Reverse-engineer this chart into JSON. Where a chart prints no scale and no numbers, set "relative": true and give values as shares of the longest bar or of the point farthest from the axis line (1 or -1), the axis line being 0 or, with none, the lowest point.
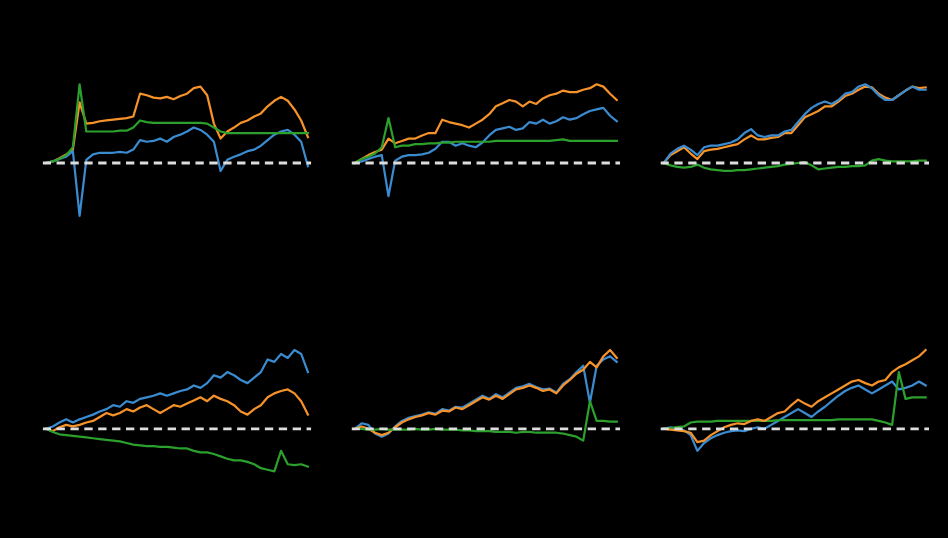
{
  "chart_data": [
    {
      "type": "line",
      "relative": true,
      "categories": [
        null,
        null,
        null,
        null,
        null,
        null,
        null,
        null,
        null,
        null,
        null,
        null,
        null,
        null,
        null,
        null,
        null,
        null,
        null,
        null,
        null,
        null,
        null,
        null,
        null,
        null,
        null,
        null,
        null,
        null,
        null,
        null,
        null,
        null,
        null,
        null,
        null,
        null,
        null,
        null
      ],
      "series": [
        {
          "color": "#f5922a",
          "values": [
            0,
            0.02,
            0.06,
            0.11,
            0.17,
            0.77,
            0.5,
            0.51,
            0.53,
            0.54,
            0.55,
            0.56,
            0.57,
            0.59,
            0.88,
            0.86,
            0.83,
            0.82,
            0.84,
            0.81,
            0.85,
            0.88,
            0.95,
            0.97,
            0.86,
            0.5,
            0.31,
            0.4,
            0.45,
            0.51,
            0.54,
            0.59,
            0.63,
            0.72,
            0.79,
            0.84,
            0.79,
            0.68,
            0.54,
            0.33
          ]
        },
        {
          "color": "#3b8bd0",
          "values": [
            0,
            0.02,
            0.05,
            0.08,
            0.15,
            -0.67,
            0.04,
            0.11,
            0.13,
            0.13,
            0.13,
            0.14,
            0.13,
            0.17,
            0.29,
            0.27,
            0.28,
            0.31,
            0.27,
            0.33,
            0.36,
            0.4,
            0.45,
            0.42,
            0.36,
            0.27,
            -0.1,
            0.04,
            0.08,
            0.11,
            0.15,
            0.17,
            0.22,
            0.29,
            0.36,
            0.4,
            0.42,
            0.36,
            0.27,
            -0.04
          ]
        },
        {
          "color": "#2ca02c",
          "values": [
            0,
            0.02,
            0.05,
            0.1,
            0.2,
            1.0,
            0.4,
            0.4,
            0.4,
            0.4,
            0.4,
            0.41,
            0.41,
            0.45,
            0.54,
            0.52,
            0.51,
            0.51,
            0.51,
            0.51,
            0.51,
            0.51,
            0.51,
            0.51,
            0.5,
            0.45,
            0.4,
            0.38,
            0.38,
            0.38,
            0.38,
            0.38,
            0.38,
            0.38,
            0.38,
            0.38,
            0.38,
            0.38,
            0.38,
            0.38
          ]
        }
      ],
      "ref_lines": [
        {
          "axis": "y",
          "value": 0,
          "color": "#dddddd",
          "line_style": "dashed"
        }
      ]
    },
    {
      "type": "line",
      "relative": true,
      "categories": [
        null,
        null,
        null,
        null,
        null,
        null,
        null,
        null,
        null,
        null,
        null,
        null,
        null,
        null,
        null,
        null,
        null,
        null,
        null,
        null,
        null,
        null,
        null,
        null,
        null,
        null,
        null,
        null,
        null,
        null,
        null,
        null,
        null,
        null,
        null,
        null,
        null,
        null,
        null,
        null
      ],
      "series": [
        {
          "color": "#f5922a",
          "values": [
            0,
            0.05,
            0.1,
            0.14,
            0.17,
            0.31,
            0.25,
            0.28,
            0.31,
            0.31,
            0.35,
            0.38,
            0.38,
            0.55,
            0.52,
            0.5,
            0.48,
            0.45,
            0.5,
            0.55,
            0.62,
            0.72,
            0.76,
            0.8,
            0.78,
            0.72,
            0.78,
            0.75,
            0.82,
            0.86,
            0.88,
            0.92,
            0.9,
            0.9,
            0.93,
            0.95,
            1.0,
            0.97,
            0.88,
            0.8
          ]
        },
        {
          "color": "#3b8bd0",
          "values": [
            0,
            0.02,
            0.05,
            0.08,
            0.1,
            -0.42,
            0.03,
            0.08,
            0.1,
            0.1,
            0.11,
            0.13,
            0.18,
            0.27,
            0.27,
            0.22,
            0.25,
            0.22,
            0.2,
            0.26,
            0.35,
            0.42,
            0.44,
            0.46,
            0.42,
            0.44,
            0.52,
            0.5,
            0.55,
            0.5,
            0.53,
            0.58,
            0.55,
            0.57,
            0.62,
            0.66,
            0.68,
            0.7,
            0.6,
            0.53
          ]
        },
        {
          "color": "#2ca02c",
          "values": [
            0,
            0.05,
            0.08,
            0.12,
            0.2,
            0.57,
            0.2,
            0.22,
            0.22,
            0.24,
            0.24,
            0.25,
            0.25,
            0.26,
            0.26,
            0.27,
            0.27,
            0.27,
            0.27,
            0.27,
            0.27,
            0.28,
            0.28,
            0.28,
            0.28,
            0.28,
            0.28,
            0.28,
            0.28,
            0.28,
            0.29,
            0.3,
            0.28,
            0.28,
            0.28,
            0.28,
            0.28,
            0.28,
            0.28,
            0.28
          ]
        }
      ],
      "ref_lines": [
        {
          "axis": "y",
          "value": 0,
          "color": "#dddddd",
          "line_style": "dashed"
        }
      ]
    },
    {
      "type": "line",
      "relative": true,
      "categories": [
        null,
        null,
        null,
        null,
        null,
        null,
        null,
        null,
        null,
        null,
        null,
        null,
        null,
        null,
        null,
        null,
        null,
        null,
        null,
        null,
        null,
        null,
        null,
        null,
        null,
        null,
        null,
        null,
        null,
        null,
        null,
        null,
        null,
        null,
        null,
        null,
        null,
        null,
        null,
        null
      ],
      "series": [
        {
          "color": "#f5922a",
          "values": [
            0,
            0.1,
            0.15,
            0.2,
            0.12,
            0.05,
            0.15,
            0.17,
            0.18,
            0.2,
            0.22,
            0.24,
            0.3,
            0.35,
            0.3,
            0.3,
            0.32,
            0.33,
            0.38,
            0.38,
            0.48,
            0.58,
            0.62,
            0.66,
            0.72,
            0.72,
            0.78,
            0.85,
            0.88,
            0.93,
            0.97,
            0.96,
            0.88,
            0.83,
            0.8,
            0.86,
            0.92,
            0.97,
            0.95,
            0.96
          ]
        },
        {
          "color": "#3b8bd0",
          "values": [
            0,
            0.12,
            0.18,
            0.22,
            0.17,
            0.1,
            0.2,
            0.22,
            0.22,
            0.24,
            0.26,
            0.3,
            0.38,
            0.43,
            0.35,
            0.33,
            0.35,
            0.35,
            0.4,
            0.42,
            0.52,
            0.62,
            0.7,
            0.75,
            0.78,
            0.75,
            0.8,
            0.88,
            0.9,
            0.97,
            1.0,
            0.95,
            0.86,
            0.8,
            0.8,
            0.86,
            0.92,
            0.97,
            0.93,
            0.93
          ]
        },
        {
          "color": "#2ca02c",
          "values": [
            0,
            -0.03,
            -0.05,
            -0.06,
            -0.05,
            -0.02,
            -0.06,
            -0.08,
            -0.09,
            -0.1,
            -0.1,
            -0.09,
            -0.09,
            -0.08,
            -0.07,
            -0.06,
            -0.05,
            -0.04,
            -0.02,
            -0.01,
            0.0,
            0.01,
            -0.03,
            -0.08,
            -0.07,
            -0.06,
            -0.05,
            -0.05,
            -0.04,
            -0.04,
            -0.03,
            0.03,
            0.05,
            0.03,
            0.02,
            0.02,
            0.02,
            0.02,
            0.03,
            0.03
          ]
        }
      ],
      "ref_lines": [
        {
          "axis": "y",
          "value": 0,
          "color": "#dddddd",
          "line_style": "dashed"
        }
      ]
    },
    {
      "type": "line",
      "relative": true,
      "categories": [
        null,
        null,
        null,
        null,
        null,
        null,
        null,
        null,
        null,
        null,
        null,
        null,
        null,
        null,
        null,
        null,
        null,
        null,
        null,
        null,
        null,
        null,
        null,
        null,
        null,
        null,
        null,
        null,
        null,
        null,
        null,
        null,
        null,
        null,
        null,
        null,
        null,
        null,
        null,
        null
      ],
      "series": [
        {
          "color": "#3b8bd0",
          "values": [
            0,
            0.03,
            0.08,
            0.12,
            0.08,
            0.12,
            0.15,
            0.18,
            0.22,
            0.25,
            0.3,
            0.28,
            0.35,
            0.33,
            0.38,
            0.4,
            0.42,
            0.45,
            0.42,
            0.45,
            0.48,
            0.5,
            0.55,
            0.52,
            0.58,
            0.68,
            0.65,
            0.72,
            0.68,
            0.62,
            0.58,
            0.65,
            0.72,
            0.88,
            0.85,
            0.95,
            0.9,
            1.0,
            0.95,
            0.72
          ]
        },
        {
          "color": "#f5922a",
          "values": [
            0,
            -0.03,
            0.02,
            0.05,
            0.03,
            0.05,
            0.08,
            0.1,
            0.15,
            0.2,
            0.17,
            0.2,
            0.25,
            0.22,
            0.27,
            0.3,
            0.25,
            0.2,
            0.25,
            0.3,
            0.28,
            0.32,
            0.36,
            0.4,
            0.35,
            0.42,
            0.38,
            0.35,
            0.3,
            0.22,
            0.18,
            0.25,
            0.3,
            0.4,
            0.45,
            0.48,
            0.5,
            0.45,
            0.35,
            0.18
          ]
        },
        {
          "color": "#2ca02c",
          "values": [
            0,
            -0.04,
            -0.07,
            -0.08,
            -0.09,
            -0.1,
            -0.11,
            -0.12,
            -0.13,
            -0.14,
            -0.15,
            -0.16,
            -0.18,
            -0.2,
            -0.21,
            -0.22,
            -0.22,
            -0.23,
            -0.23,
            -0.24,
            -0.25,
            -0.25,
            -0.28,
            -0.3,
            -0.3,
            -0.32,
            -0.35,
            -0.38,
            -0.4,
            -0.4,
            -0.42,
            -0.45,
            -0.5,
            -0.52,
            -0.54,
            -0.28,
            -0.45,
            -0.46,
            -0.45,
            -0.48
          ]
        }
      ],
      "ref_lines": [
        {
          "axis": "y",
          "value": 0,
          "color": "#dddddd",
          "line_style": "dashed"
        }
      ]
    },
    {
      "type": "line",
      "relative": true,
      "categories": [
        null,
        null,
        null,
        null,
        null,
        null,
        null,
        null,
        null,
        null,
        null,
        null,
        null,
        null,
        null,
        null,
        null,
        null,
        null,
        null,
        null,
        null,
        null,
        null,
        null,
        null,
        null,
        null,
        null,
        null,
        null,
        null,
        null,
        null,
        null,
        null,
        null,
        null,
        null,
        null
      ],
      "series": [
        {
          "color": "#3b8bd0",
          "values": [
            0,
            0.07,
            0.05,
            -0.06,
            -0.1,
            -0.06,
            0.03,
            0.1,
            0.14,
            0.16,
            0.18,
            0.21,
            0.19,
            0.25,
            0.23,
            0.28,
            0.27,
            0.32,
            0.37,
            0.42,
            0.38,
            0.44,
            0.4,
            0.46,
            0.52,
            0.54,
            0.57,
            0.53,
            0.5,
            0.51,
            0.46,
            0.57,
            0.63,
            0.72,
            0.8,
            0.33,
            0.8,
            0.88,
            0.92,
            0.85
          ]
        },
        {
          "color": "#f5922a",
          "values": [
            0,
            0.03,
            0.0,
            -0.05,
            -0.08,
            -0.05,
            0.02,
            0.08,
            0.12,
            0.15,
            0.17,
            0.2,
            0.18,
            0.23,
            0.22,
            0.27,
            0.25,
            0.3,
            0.35,
            0.4,
            0.37,
            0.42,
            0.38,
            0.44,
            0.5,
            0.52,
            0.55,
            0.52,
            0.48,
            0.5,
            0.45,
            0.55,
            0.62,
            0.7,
            0.75,
            0.85,
            0.78,
            0.92,
            1.0,
            0.9
          ]
        },
        {
          "color": "#2ca02c",
          "values": [
            0,
            0,
            -0.01,
            -0.01,
            0,
            -0.01,
            -0.01,
            -0.01,
            -0.01,
            0,
            -0.01,
            -0.01,
            0,
            -0.01,
            -0.01,
            -0.01,
            -0.02,
            -0.02,
            -0.03,
            -0.03,
            -0.03,
            -0.04,
            -0.04,
            -0.04,
            -0.05,
            -0.04,
            -0.04,
            -0.05,
            -0.05,
            -0.05,
            -0.05,
            -0.06,
            -0.08,
            -0.1,
            -0.15,
            0.35,
            0.1,
            0.1,
            0.09,
            0.09
          ]
        }
      ],
      "ref_lines": [
        {
          "axis": "y",
          "value": 0,
          "color": "#dddddd",
          "line_style": "dashed"
        }
      ]
    },
    {
      "type": "line",
      "relative": true,
      "categories": [
        null,
        null,
        null,
        null,
        null,
        null,
        null,
        null,
        null,
        null,
        null,
        null,
        null,
        null,
        null,
        null,
        null,
        null,
        null,
        null,
        null,
        null,
        null,
        null,
        null,
        null,
        null,
        null,
        null,
        null,
        null,
        null,
        null,
        null,
        null,
        null,
        null,
        null,
        null,
        null
      ],
      "series": [
        {
          "color": "#3b8bd0",
          "values": [
            0,
            0.02,
            0.0,
            -0.02,
            -0.08,
            -0.28,
            -0.18,
            -0.12,
            -0.08,
            -0.05,
            -0.03,
            -0.02,
            -0.03,
            0.0,
            0.02,
            0.0,
            0.05,
            0.1,
            0.15,
            0.2,
            0.25,
            0.2,
            0.15,
            0.22,
            0.28,
            0.35,
            0.42,
            0.48,
            0.52,
            0.55,
            0.5,
            0.45,
            0.5,
            0.55,
            0.6,
            0.5,
            0.52,
            0.55,
            0.6,
            0.55
          ]
        },
        {
          "color": "#2ca02c",
          "values": [
            0,
            0.01,
            0.02,
            0.03,
            0.08,
            0.09,
            0.09,
            0.09,
            0.1,
            0.1,
            0.1,
            0.1,
            0.1,
            0.1,
            0.1,
            0.1,
            0.1,
            0.11,
            0.11,
            0.11,
            0.11,
            0.11,
            0.11,
            0.11,
            0.11,
            0.11,
            0.12,
            0.12,
            0.12,
            0.12,
            0.12,
            0.12,
            0.1,
            0.08,
            0.05,
            0.72,
            0.38,
            0.4,
            0.4,
            0.4
          ]
        },
        {
          "color": "#f5922a",
          "values": [
            0,
            -0.01,
            -0.02,
            -0.03,
            -0.05,
            -0.17,
            -0.15,
            -0.08,
            -0.03,
            0.02,
            0.05,
            0.07,
            0.06,
            0.1,
            0.12,
            0.1,
            0.15,
            0.2,
            0.22,
            0.3,
            0.37,
            0.32,
            0.28,
            0.35,
            0.4,
            0.45,
            0.5,
            0.55,
            0.6,
            0.62,
            0.58,
            0.55,
            0.6,
            0.62,
            0.72,
            0.78,
            0.82,
            0.87,
            0.92,
            1.0
          ]
        }
      ],
      "ref_lines": [
        {
          "axis": "y",
          "value": 0,
          "color": "#dddddd",
          "line_style": "dashed"
        }
      ]
    }
  ]
}
